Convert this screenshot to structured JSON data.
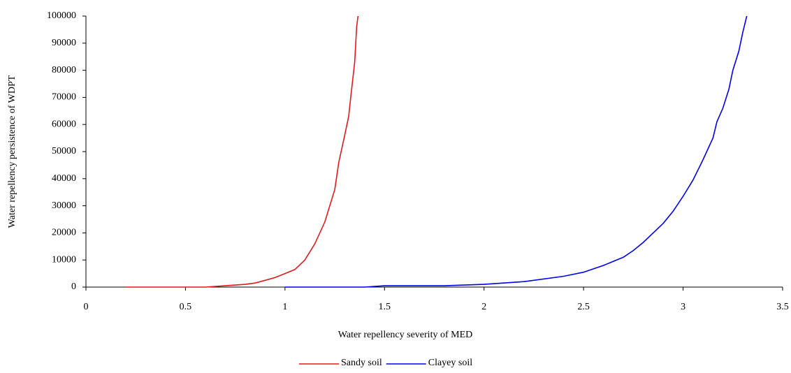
{
  "chart_data": {
    "type": "line",
    "x_label": "Water repellency severity of MED",
    "y_label": "Water repellency persistence of WDPT",
    "xlim": [
      0,
      3.5
    ],
    "xticks": [
      0,
      0.5,
      1,
      1.5,
      2,
      2.5,
      3,
      3.5
    ],
    "ylim": [
      0,
      100000
    ],
    "yticks": [
      0,
      10000,
      20000,
      30000,
      40000,
      50000,
      60000,
      70000,
      80000,
      90000,
      100000
    ],
    "grid": false,
    "legend": "bottom",
    "series": [
      {
        "name": "Sandy soil",
        "color": "#e31a1c",
        "x": [
          0.2,
          0.4,
          0.6,
          0.7,
          0.8,
          0.85,
          0.9,
          0.95,
          1.0,
          1.05,
          1.1,
          1.15,
          1.2,
          1.25,
          1.27,
          1.3,
          1.32,
          1.33,
          1.35,
          1.36,
          1.37
        ],
        "values": [
          0,
          0,
          0,
          500,
          1000,
          1500,
          2500,
          3500,
          5000,
          6500,
          10000,
          16000,
          24000,
          36000,
          46000,
          56000,
          63000,
          70000,
          83000,
          96000,
          102000
        ]
      },
      {
        "name": "Clayey soil",
        "color": "#0000ee",
        "x": [
          1.0,
          1.4,
          1.5,
          1.8,
          2.0,
          2.2,
          2.4,
          2.5,
          2.6,
          2.7,
          2.75,
          2.8,
          2.85,
          2.9,
          2.95,
          3.0,
          3.05,
          3.08,
          3.1,
          3.15,
          3.17,
          3.2,
          3.23,
          3.25,
          3.28,
          3.3,
          3.32,
          3.33
        ],
        "values": [
          0,
          0,
          500,
          500,
          1000,
          2000,
          4000,
          5500,
          8000,
          11000,
          13500,
          16500,
          20000,
          23500,
          28000,
          33500,
          39500,
          44000,
          47000,
          55000,
          61000,
          66000,
          73000,
          80000,
          87000,
          94000,
          100000,
          102000
        ]
      }
    ]
  }
}
